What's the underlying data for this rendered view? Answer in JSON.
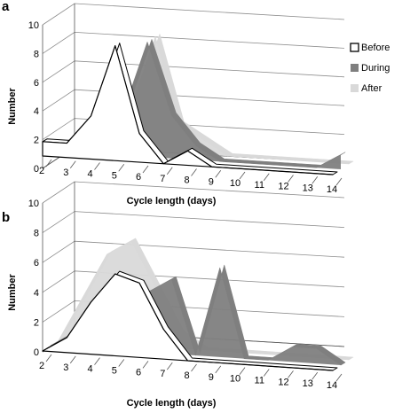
{
  "figure": {
    "legend_entries": [
      "Before",
      "During",
      "After"
    ],
    "colors": {
      "Before": "#ffffff",
      "During": "#7f7f7f",
      "After": "#d9d9d9"
    }
  },
  "chart_data": [
    {
      "panel_label": "a",
      "type": "area",
      "style": "3d-stacked-ribbon",
      "xlabel": "Cycle length (days)",
      "ylabel": "Number",
      "categories": [
        "2",
        "3",
        "4",
        "5",
        "6",
        "7",
        "8",
        "9",
        "10",
        "11",
        "12",
        "13",
        "14"
      ],
      "ylim": [
        0,
        10
      ],
      "yticks": [
        "0",
        "2",
        "4",
        "6",
        "8",
        "10"
      ],
      "grid": true,
      "legend_placement": "right",
      "series": [
        {
          "name": "Before",
          "values": [
            1,
            1,
            3,
            8,
            2,
            0,
            1,
            0,
            0,
            0,
            0,
            0,
            0
          ]
        },
        {
          "name": "During",
          "values": [
            0,
            1,
            0,
            3,
            8,
            3,
            1,
            0,
            0,
            0,
            0,
            0,
            1
          ]
        },
        {
          "name": "After",
          "values": [
            0,
            1,
            3,
            3,
            8,
            2,
            1,
            0,
            0,
            0,
            0,
            0,
            0
          ]
        }
      ]
    },
    {
      "panel_label": "b",
      "type": "area",
      "style": "3d-stacked-ribbon",
      "xlabel": "Cycle length (days)",
      "ylabel": "Number",
      "categories": [
        "2",
        "3",
        "4",
        "5",
        "6",
        "7",
        "8",
        "9",
        "10",
        "11",
        "12",
        "13",
        "14"
      ],
      "ylim": [
        0,
        10
      ],
      "yticks": [
        "0",
        "2",
        "4",
        "6",
        "8",
        "10"
      ],
      "grid": true,
      "legend_placement": "none",
      "series": [
        {
          "name": "Before",
          "values": [
            0,
            1,
            3.5,
            5.5,
            5,
            2,
            0,
            0,
            0,
            0,
            0,
            0,
            0
          ]
        },
        {
          "name": "During",
          "values": [
            0,
            1,
            0,
            3,
            4,
            5,
            0,
            6,
            0,
            0,
            1,
            1,
            0
          ]
        },
        {
          "name": "After",
          "values": [
            0,
            3,
            6,
            7,
            4,
            1,
            0,
            0,
            0,
            0,
            0,
            0,
            0
          ]
        }
      ]
    }
  ]
}
